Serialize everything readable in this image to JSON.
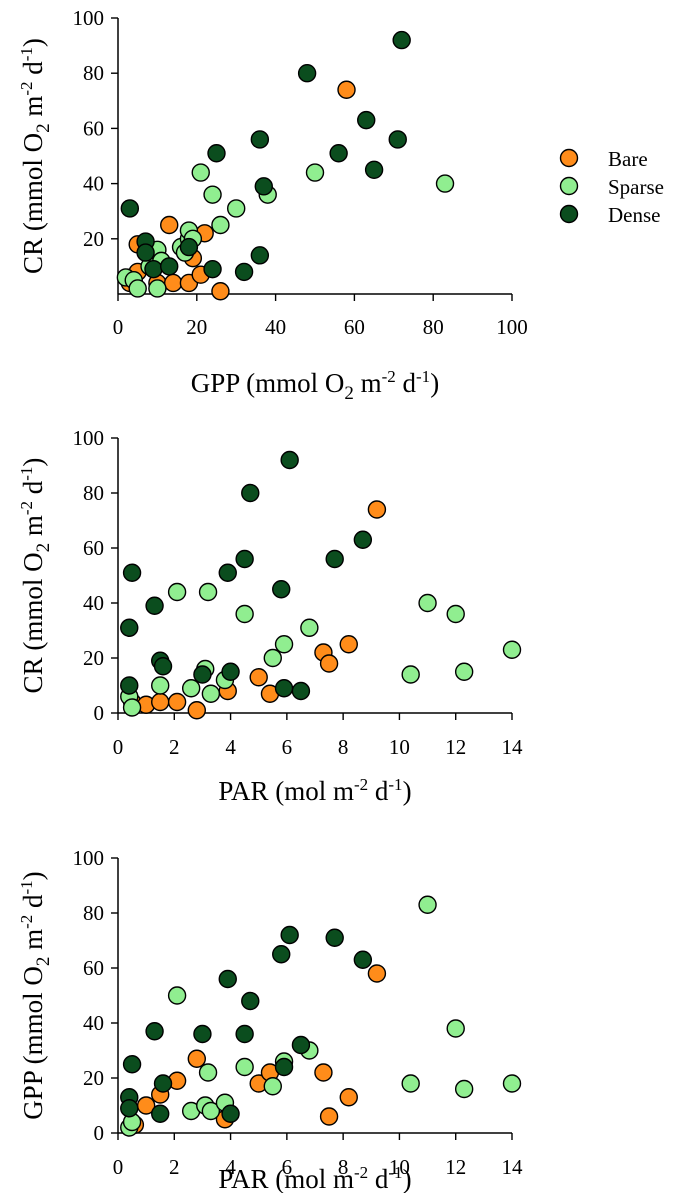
{
  "legend": {
    "items": [
      {
        "label": "Bare",
        "color": "#FF8C1A"
      },
      {
        "label": "Sparse",
        "color": "#90EE90"
      },
      {
        "label": "Dense",
        "color": "#0B4D1E"
      }
    ]
  },
  "chart_data": [
    {
      "type": "scatter",
      "xlabel": {
        "main": "GPP (mmol O",
        "sub": "2",
        "mid": " m",
        "sup1": "-2",
        "mid2": " d",
        "sup2": "-1",
        "end": ")"
      },
      "ylabel": {
        "main": "CR (mmol O",
        "sub": "2",
        "mid": " m",
        "sup1": "-2",
        "mid2": " d",
        "sup2": "-1",
        "end": ")"
      },
      "xlim": [
        0,
        100
      ],
      "ylim": [
        0,
        100
      ],
      "xticks": [
        "0",
        "20",
        "40",
        "60",
        "80",
        "100"
      ],
      "yticks": [
        "20",
        "40",
        "60",
        "80",
        "100"
      ],
      "legend": "right",
      "series": [
        {
          "name": "Bare",
          "color": "#FF8C1A",
          "points": [
            [
              3,
              4
            ],
            [
              5,
              18
            ],
            [
              5,
              8
            ],
            [
              10,
              4
            ],
            [
              13,
              25
            ],
            [
              14,
              4
            ],
            [
              18,
              4
            ],
            [
              19,
              13
            ],
            [
              21,
              7
            ],
            [
              22,
              22
            ],
            [
              26,
              1
            ],
            [
              58,
              74
            ]
          ]
        },
        {
          "name": "Sparse",
          "color": "#90EE90",
          "points": [
            [
              2,
              6
            ],
            [
              4,
              5
            ],
            [
              5,
              2
            ],
            [
              8,
              10
            ],
            [
              10,
              2
            ],
            [
              10,
              16
            ],
            [
              11,
              12
            ],
            [
              16,
              17
            ],
            [
              17,
              15
            ],
            [
              18,
              20
            ],
            [
              18,
              23
            ],
            [
              19,
              20
            ],
            [
              21,
              44
            ],
            [
              24,
              36
            ],
            [
              26,
              25
            ],
            [
              30,
              31
            ],
            [
              38,
              36
            ],
            [
              50,
              44
            ],
            [
              83,
              40
            ]
          ]
        },
        {
          "name": "Dense",
          "color": "#0B4D1E",
          "points": [
            [
              3,
              31
            ],
            [
              7,
              19
            ],
            [
              7,
              15
            ],
            [
              9,
              9
            ],
            [
              13,
              10
            ],
            [
              18,
              17
            ],
            [
              24,
              9
            ],
            [
              25,
              51
            ],
            [
              32,
              8
            ],
            [
              36,
              56
            ],
            [
              36,
              14
            ],
            [
              37,
              39
            ],
            [
              48,
              80
            ],
            [
              56,
              51
            ],
            [
              63,
              63
            ],
            [
              65,
              45
            ],
            [
              71,
              56
            ],
            [
              72,
              92
            ]
          ]
        }
      ]
    },
    {
      "type": "scatter",
      "xlabel": {
        "main": "PAR (mol m",
        "sup1": "-2",
        "mid": " d",
        "sup2": "-1",
        "end": ")"
      },
      "ylabel": {
        "main": "CR (mmol O",
        "sub": "2",
        "mid": " m",
        "sup1": "-2",
        "mid2": " d",
        "sup2": "-1",
        "end": ")"
      },
      "xlim": [
        0,
        14
      ],
      "ylim": [
        0,
        100
      ],
      "xticks": [
        "0",
        "2",
        "4",
        "6",
        "8",
        "10",
        "12",
        "14"
      ],
      "yticks": [
        "0",
        "20",
        "40",
        "60",
        "80",
        "100"
      ],
      "series": [
        {
          "name": "Bare",
          "color": "#FF8C1A",
          "points": [
            [
              0.5,
              4
            ],
            [
              1.0,
              3
            ],
            [
              1.5,
              4
            ],
            [
              2.1,
              4
            ],
            [
              2.8,
              1
            ],
            [
              3.9,
              8
            ],
            [
              5.0,
              13
            ],
            [
              5.4,
              7
            ],
            [
              7.3,
              22
            ],
            [
              7.5,
              18
            ],
            [
              8.2,
              25
            ],
            [
              9.2,
              74
            ]
          ]
        },
        {
          "name": "Sparse",
          "color": "#90EE90",
          "points": [
            [
              0.4,
              6
            ],
            [
              0.5,
              2
            ],
            [
              1.5,
              10
            ],
            [
              2.1,
              44
            ],
            [
              2.6,
              9
            ],
            [
              3.1,
              16
            ],
            [
              3.2,
              44
            ],
            [
              3.3,
              7
            ],
            [
              3.8,
              12
            ],
            [
              4.5,
              36
            ],
            [
              5.5,
              20
            ],
            [
              5.9,
              25
            ],
            [
              6.8,
              31
            ],
            [
              10.4,
              14
            ],
            [
              11.0,
              40
            ],
            [
              12.0,
              36
            ],
            [
              12.3,
              15
            ],
            [
              14.0,
              23
            ]
          ]
        },
        {
          "name": "Dense",
          "color": "#0B4D1E",
          "points": [
            [
              0.4,
              31
            ],
            [
              0.4,
              10
            ],
            [
              0.5,
              51
            ],
            [
              1.3,
              39
            ],
            [
              1.5,
              19
            ],
            [
              1.6,
              17
            ],
            [
              3.0,
              14
            ],
            [
              3.9,
              51
            ],
            [
              4.0,
              15
            ],
            [
              4.5,
              56
            ],
            [
              4.7,
              80
            ],
            [
              5.8,
              45
            ],
            [
              5.9,
              9
            ],
            [
              6.1,
              92
            ],
            [
              6.5,
              8
            ],
            [
              7.7,
              56
            ],
            [
              8.7,
              63
            ]
          ]
        }
      ]
    },
    {
      "type": "scatter",
      "xlabel": {
        "main": "PAR (mol m",
        "sup1": "-2",
        "mid": " d",
        "sup2": "-1",
        "end": ")"
      },
      "ylabel": {
        "main": "GPP (mmol O",
        "sub": "2",
        "mid": " m",
        "sup1": "-2",
        "mid2": " d",
        "sup2": "-1",
        "end": ")"
      },
      "xlim": [
        0,
        14
      ],
      "ylim": [
        0,
        100
      ],
      "xticks": [
        "0",
        "2",
        "4",
        "6",
        "8",
        "10",
        "12",
        "14"
      ],
      "yticks": [
        "0",
        "20",
        "40",
        "60",
        "80",
        "100"
      ],
      "series": [
        {
          "name": "Bare",
          "color": "#FF8C1A",
          "points": [
            [
              0.6,
              3
            ],
            [
              1.0,
              10
            ],
            [
              1.5,
              14
            ],
            [
              2.1,
              19
            ],
            [
              2.8,
              27
            ],
            [
              3.8,
              5
            ],
            [
              5.0,
              18
            ],
            [
              5.4,
              22
            ],
            [
              7.3,
              22
            ],
            [
              7.5,
              6
            ],
            [
              8.2,
              13
            ],
            [
              9.2,
              58
            ]
          ]
        },
        {
          "name": "Sparse",
          "color": "#90EE90",
          "points": [
            [
              0.4,
              2
            ],
            [
              0.5,
              4
            ],
            [
              2.1,
              50
            ],
            [
              2.6,
              8
            ],
            [
              3.1,
              10
            ],
            [
              3.2,
              22
            ],
            [
              3.3,
              8
            ],
            [
              3.8,
              11
            ],
            [
              4.5,
              24
            ],
            [
              5.5,
              17
            ],
            [
              5.9,
              26
            ],
            [
              6.8,
              30
            ],
            [
              10.4,
              18
            ],
            [
              11.0,
              83
            ],
            [
              12.0,
              38
            ],
            [
              12.3,
              16
            ],
            [
              14.0,
              18
            ]
          ]
        },
        {
          "name": "Dense",
          "color": "#0B4D1E",
          "points": [
            [
              0.4,
              13
            ],
            [
              0.4,
              9
            ],
            [
              0.5,
              25
            ],
            [
              1.3,
              37
            ],
            [
              1.5,
              7
            ],
            [
              1.6,
              18
            ],
            [
              3.0,
              36
            ],
            [
              3.9,
              56
            ],
            [
              4.0,
              7
            ],
            [
              4.5,
              36
            ],
            [
              4.7,
              48
            ],
            [
              5.8,
              65
            ],
            [
              5.9,
              24
            ],
            [
              6.1,
              72
            ],
            [
              6.5,
              32
            ],
            [
              7.7,
              71
            ],
            [
              8.7,
              63
            ]
          ]
        }
      ]
    }
  ]
}
